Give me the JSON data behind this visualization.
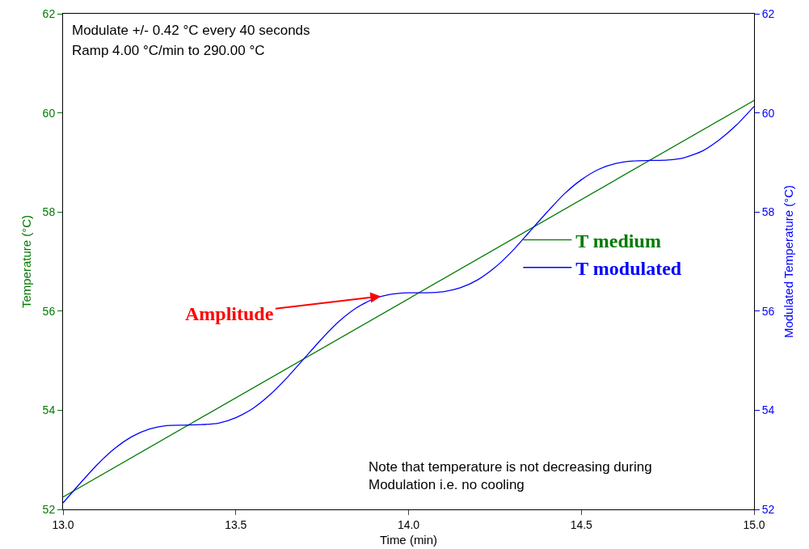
{
  "chart_data": {
    "type": "line",
    "xlabel": "Time (min)",
    "ylabel": "Temperature (°C)",
    "y2label": "Modulated Temperature (°C)",
    "x": [
      13.0,
      13.05,
      13.1,
      13.15,
      13.2,
      13.25,
      13.3,
      13.35,
      13.4,
      13.45,
      13.5,
      13.55,
      13.6,
      13.65,
      13.7,
      13.75,
      13.8,
      13.85,
      13.9,
      13.95,
      14.0,
      14.05,
      14.1,
      14.15,
      14.2,
      14.25,
      14.3,
      14.35,
      14.4,
      14.45,
      14.5,
      14.55,
      14.6,
      14.65,
      14.7,
      14.75,
      14.8,
      14.85,
      14.9,
      14.95,
      15.0
    ],
    "series": [
      {
        "name": "T medium",
        "color": "#007a00",
        "x": [
          13.0,
          15.0
        ],
        "values": [
          52.25,
          60.25
        ]
      },
      {
        "name": "T modulated",
        "color": "#0000ff",
        "axis": "y2",
        "values": [
          52.13,
          52.53,
          52.91,
          53.23,
          53.47,
          53.62,
          53.69,
          53.7,
          53.71,
          53.74,
          53.85,
          54.04,
          54.32,
          54.67,
          55.06,
          55.45,
          55.8,
          56.07,
          56.25,
          56.34,
          56.37,
          56.37,
          56.39,
          56.47,
          56.63,
          56.88,
          57.21,
          57.6,
          57.99,
          58.36,
          58.65,
          58.86,
          58.98,
          59.03,
          59.04,
          59.05,
          59.1,
          59.23,
          59.46,
          59.76,
          60.13
        ]
      }
    ],
    "xlim": [
      13.0,
      15.0
    ],
    "xticks": [
      {
        "value": 13.0,
        "label": "13.0"
      },
      {
        "value": 13.5,
        "label": "13.5"
      },
      {
        "value": 14.0,
        "label": "14.0"
      },
      {
        "value": 14.5,
        "label": "14.5"
      },
      {
        "value": 15.0,
        "label": "15.0"
      }
    ],
    "ylim": [
      52,
      62
    ],
    "yticks": [
      52,
      54,
      56,
      58,
      60,
      62
    ],
    "y2lim": [
      52,
      62
    ],
    "y2ticks": [
      52,
      54,
      56,
      58,
      60,
      62
    ],
    "annotations": [
      "Modulate +/- 0.42 °C every 40 seconds",
      "Ramp 4.00 °C/min to 290.00 °C",
      "Note that temperature is not decreasing during\nModulation i.e. no cooling",
      {
        "text": "Amplitude",
        "x": 13.92,
        "y": 56.3
      }
    ],
    "legend": "right",
    "grid": false,
    "marker": "none",
    "line_style": "solid"
  }
}
